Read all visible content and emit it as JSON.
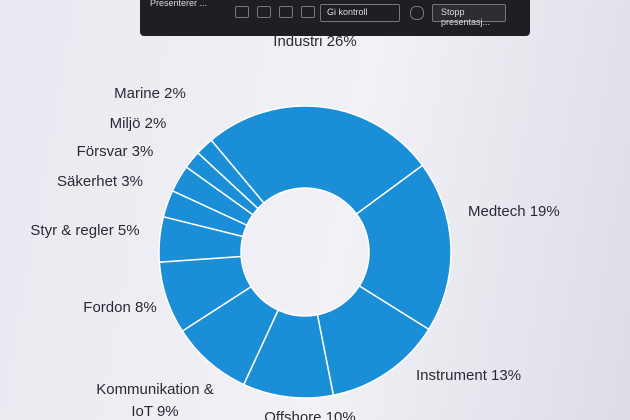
{
  "toolbar": {
    "presenting": "Presenterer ...",
    "control": "Gi kontroll",
    "stop": "Stopp presentasj..."
  },
  "chart_data": {
    "type": "donut",
    "categories": [
      "Industri",
      "Medtech",
      "Instrument",
      "Offshore",
      "Kommunikation & IoT",
      "Fordon",
      "Styr & regler",
      "Säkerhet",
      "Försvar",
      "Miljö",
      "Marine"
    ],
    "values": [
      26,
      19,
      13,
      10,
      9,
      8,
      5,
      3,
      3,
      2,
      2
    ],
    "value_labels": [
      "26%",
      "19%",
      "13%",
      "10%",
      "9%",
      "8%",
      "5%",
      "3%",
      "3%",
      "2%",
      "2%"
    ],
    "color": "#1a8ed6"
  }
}
